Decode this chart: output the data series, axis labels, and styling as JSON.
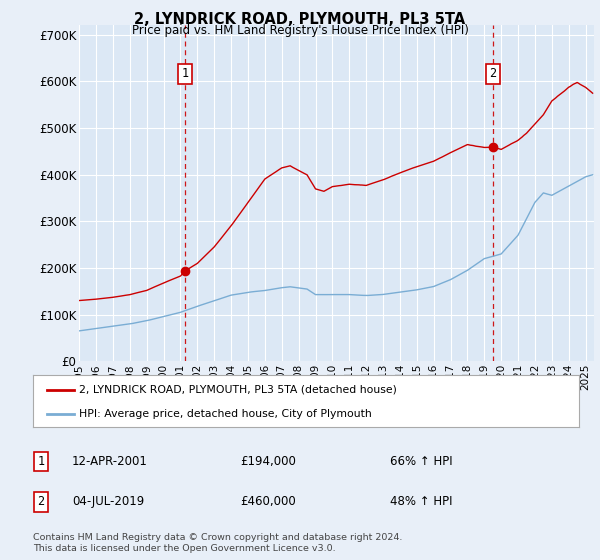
{
  "title": "2, LYNDRICK ROAD, PLYMOUTH, PL3 5TA",
  "subtitle": "Price paid vs. HM Land Registry's House Price Index (HPI)",
  "ylim": [
    0,
    720000
  ],
  "yticks": [
    0,
    100000,
    200000,
    300000,
    400000,
    500000,
    600000,
    700000
  ],
  "ytick_labels": [
    "£0",
    "£100K",
    "£200K",
    "£300K",
    "£400K",
    "£500K",
    "£600K",
    "£700K"
  ],
  "bg_color": "#e8eff8",
  "plot_bg_color": "#dce8f5",
  "grid_color": "#ffffff",
  "red_color": "#cc0000",
  "blue_color": "#7aadd4",
  "dashed_color": "#cc0000",
  "sale1_date": 2001.28,
  "sale1_price": 194000,
  "sale2_date": 2019.51,
  "sale2_price": 460000,
  "legend_label_red": "2, LYNDRICK ROAD, PLYMOUTH, PL3 5TA (detached house)",
  "legend_label_blue": "HPI: Average price, detached house, City of Plymouth",
  "annotation1_label": "1",
  "annotation1_date": "12-APR-2001",
  "annotation1_price": "£194,000",
  "annotation1_hpi": "66% ↑ HPI",
  "annotation2_label": "2",
  "annotation2_date": "04-JUL-2019",
  "annotation2_price": "£460,000",
  "annotation2_hpi": "48% ↑ HPI",
  "footer": "Contains HM Land Registry data © Crown copyright and database right 2024.\nThis data is licensed under the Open Government Licence v3.0.",
  "xmin": 1995.0,
  "xmax": 2025.5
}
